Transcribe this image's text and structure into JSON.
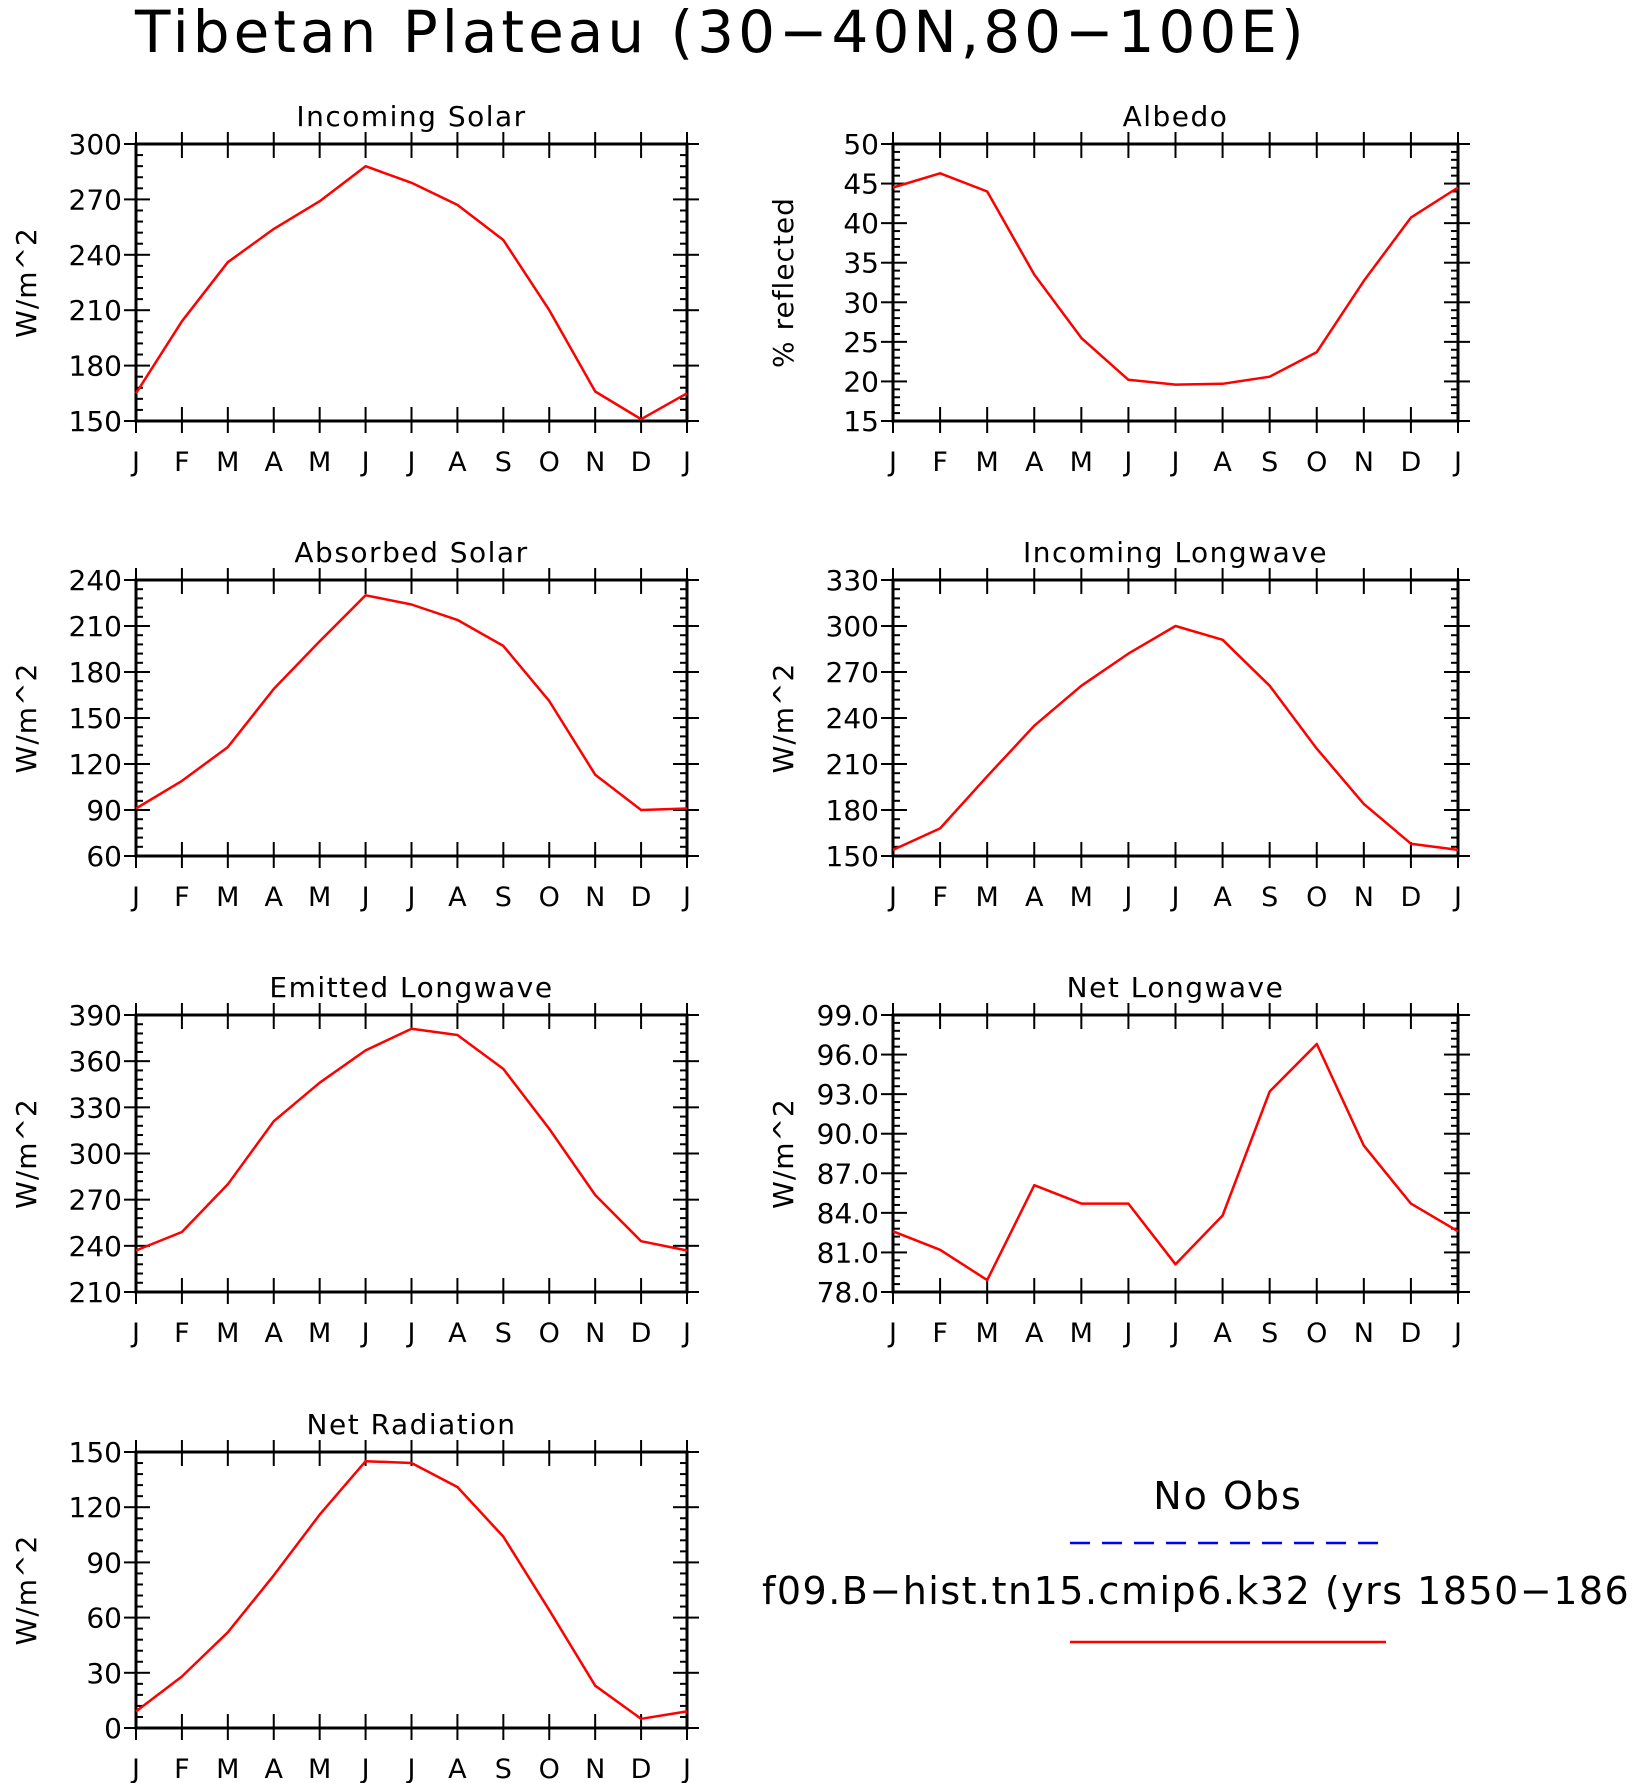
{
  "figure": {
    "title": "Tibetan Plateau (30−40N,80−100E)"
  },
  "chart_data": [
    {
      "type": "line",
      "title": "Incoming Solar",
      "ylabel": "W/m^2",
      "x": [
        "J",
        "F",
        "M",
        "A",
        "M",
        "J",
        "J",
        "A",
        "S",
        "O",
        "N",
        "D",
        "J"
      ],
      "yticks": [
        "150",
        "180",
        "210",
        "240",
        "270",
        "300"
      ],
      "ylim": [
        150,
        300
      ],
      "series": [
        {
          "name": "f09.B−hist.tn15.cmip6.k32 (yrs 1850−186",
          "color": "#ff0000",
          "values": [
            165,
            204,
            236,
            254,
            269,
            288,
            279,
            267,
            248,
            210,
            166,
            151,
            165
          ]
        }
      ]
    },
    {
      "type": "line",
      "title": "Albedo",
      "ylabel": "% reflected",
      "x": [
        "J",
        "F",
        "M",
        "A",
        "M",
        "J",
        "J",
        "A",
        "S",
        "O",
        "N",
        "D",
        "J"
      ],
      "yticks": [
        "15",
        "20",
        "25",
        "30",
        "35",
        "40",
        "45",
        "50"
      ],
      "ylim": [
        15,
        50
      ],
      "series": [
        {
          "name": "f09.B−hist.tn15.cmip6.k32 (yrs 1850−186",
          "color": "#ff0000",
          "values": [
            44.5,
            46.3,
            44.0,
            33.5,
            25.5,
            20.2,
            19.6,
            19.7,
            20.6,
            23.7,
            32.7,
            40.7,
            44.5
          ]
        }
      ]
    },
    {
      "type": "line",
      "title": "Absorbed Solar",
      "ylabel": "W/m^2",
      "x": [
        "J",
        "F",
        "M",
        "A",
        "M",
        "J",
        "J",
        "A",
        "S",
        "O",
        "N",
        "D",
        "J"
      ],
      "yticks": [
        "60",
        "90",
        "120",
        "150",
        "180",
        "210",
        "240"
      ],
      "ylim": [
        60,
        240
      ],
      "series": [
        {
          "name": "f09.B−hist.tn15.cmip6.k32 (yrs 1850−186",
          "color": "#ff0000",
          "values": [
            91,
            109,
            131,
            169,
            200,
            230,
            224,
            214,
            197,
            161,
            113,
            90,
            91
          ]
        }
      ]
    },
    {
      "type": "line",
      "title": "Incoming Longwave",
      "ylabel": "W/m^2",
      "x": [
        "J",
        "F",
        "M",
        "A",
        "M",
        "J",
        "J",
        "A",
        "S",
        "O",
        "N",
        "D",
        "J"
      ],
      "yticks": [
        "150",
        "180",
        "210",
        "240",
        "270",
        "300",
        "330"
      ],
      "ylim": [
        150,
        330
      ],
      "series": [
        {
          "name": "f09.B−hist.tn15.cmip6.k32 (yrs 1850−186",
          "color": "#ff0000",
          "values": [
            154,
            168,
            202,
            235,
            261,
            282,
            300,
            291,
            261,
            220,
            184,
            158,
            154
          ]
        }
      ]
    },
    {
      "type": "line",
      "title": "Emitted Longwave",
      "ylabel": "W/m^2",
      "x": [
        "J",
        "F",
        "M",
        "A",
        "M",
        "J",
        "J",
        "A",
        "S",
        "O",
        "N",
        "D",
        "J"
      ],
      "yticks": [
        "210",
        "240",
        "270",
        "300",
        "330",
        "360",
        "390"
      ],
      "ylim": [
        210,
        390
      ],
      "series": [
        {
          "name": "f09.B−hist.tn15.cmip6.k32 (yrs 1850−186",
          "color": "#ff0000",
          "values": [
            237,
            249,
            280,
            321,
            346,
            367,
            381,
            377,
            355,
            316,
            273,
            243,
            237
          ]
        }
      ]
    },
    {
      "type": "line",
      "title": "Net Longwave",
      "ylabel": "W/m^2",
      "x": [
        "J",
        "F",
        "M",
        "A",
        "M",
        "J",
        "J",
        "A",
        "S",
        "O",
        "N",
        "D",
        "J"
      ],
      "yticks": [
        "78.0",
        "81.0",
        "84.0",
        "87.0",
        "90.0",
        "93.0",
        "96.0",
        "99.0"
      ],
      "ylim": [
        78,
        99
      ],
      "series": [
        {
          "name": "f09.B−hist.tn15.cmip6.k32 (yrs 1850−186",
          "color": "#ff0000",
          "values": [
            82.6,
            81.2,
            78.9,
            86.1,
            84.7,
            84.7,
            80.1,
            83.8,
            93.2,
            96.8,
            89.1,
            84.7,
            82.6
          ]
        }
      ]
    },
    {
      "type": "line",
      "title": "Net Radiation",
      "ylabel": "W/m^2",
      "x": [
        "J",
        "F",
        "M",
        "A",
        "M",
        "J",
        "J",
        "A",
        "S",
        "O",
        "N",
        "D",
        "J"
      ],
      "yticks": [
        "0",
        "30",
        "60",
        "90",
        "120",
        "150"
      ],
      "ylim": [
        0,
        150
      ],
      "series": [
        {
          "name": "f09.B−hist.tn15.cmip6.k32 (yrs 1850−186",
          "color": "#ff0000",
          "values": [
            9,
            28,
            52,
            83,
            116,
            145,
            144,
            131,
            104,
            64,
            23,
            5,
            9
          ]
        }
      ]
    }
  ],
  "legend": {
    "items": [
      {
        "label": "No Obs",
        "color": "#0000ff",
        "dash": true
      },
      {
        "label": "f09.B−hist.tn15.cmip6.k32 (yrs 1850−186",
        "color": "#ff0000",
        "dash": false
      }
    ]
  }
}
